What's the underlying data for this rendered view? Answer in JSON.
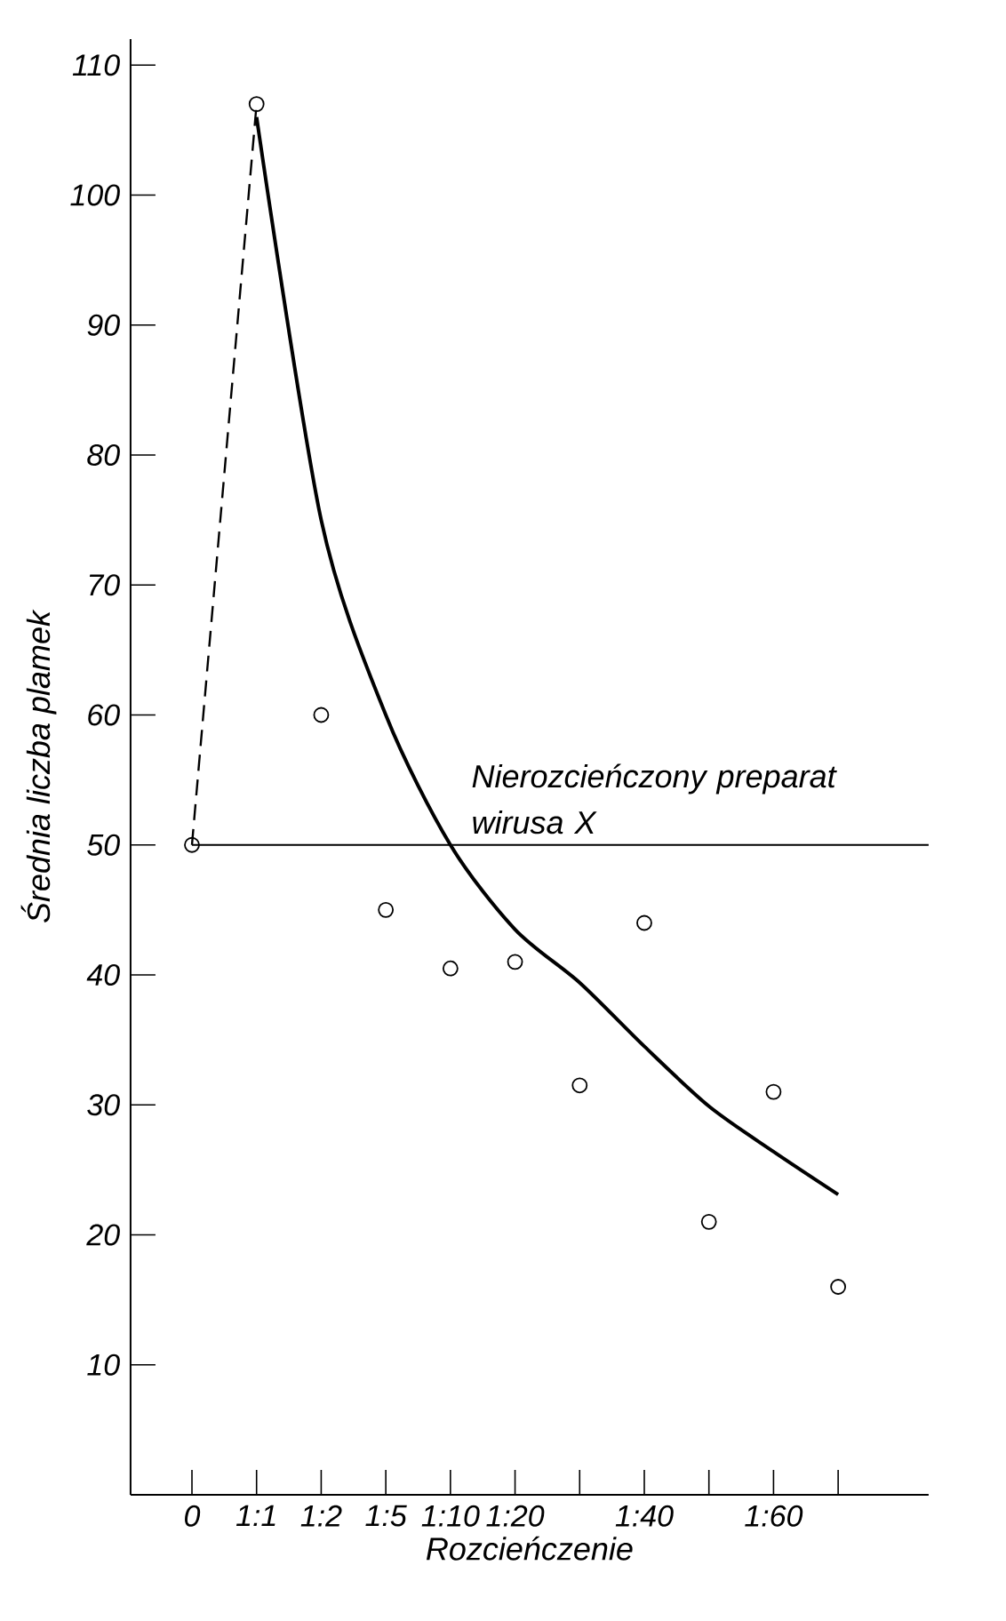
{
  "chart_data": {
    "type": "scatter",
    "xlabel": "Rozcieńczenie",
    "ylabel": "Średnia liczba plamek",
    "categories": [
      "0",
      "1:1",
      "1:2",
      "1:5",
      "1:10",
      "1:20",
      null,
      "1:40",
      null,
      "1:60",
      null
    ],
    "ylim": [
      0,
      112
    ],
    "yticks": [
      10,
      20,
      30,
      40,
      50,
      60,
      70,
      80,
      90,
      100,
      110
    ],
    "series": [
      {
        "color": "#000000",
        "marker": "circle",
        "values": [
          50,
          107,
          60,
          45,
          40.5,
          41,
          31.5,
          44,
          21,
          31,
          16
        ]
      },
      {
        "type": "line",
        "color": "#000000",
        "line_style": "dashed",
        "values": [
          50,
          107,
          null,
          null,
          null,
          null,
          null,
          null,
          null,
          null,
          null
        ]
      },
      {
        "type": "line",
        "color": "#000000",
        "line_style": "solid",
        "values": [
          null,
          106,
          75,
          60,
          50,
          43.5,
          39.4,
          34.5,
          29.9,
          26.4,
          23.1
        ]
      }
    ],
    "ref_lines": [
      {
        "axis": "y",
        "value": 50,
        "label": "Nierozcieńczony preparat wirusa X"
      }
    ]
  }
}
